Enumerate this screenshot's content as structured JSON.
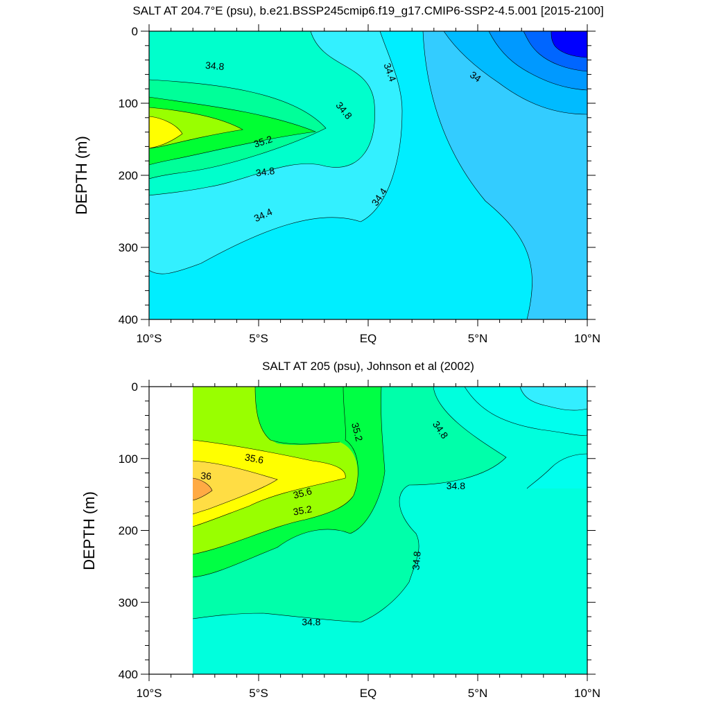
{
  "chart_data": [
    {
      "type": "contour",
      "title": "SALT AT 204.7°E (psu), b.e21.BSSP245cmip6.f19_g17.CMIP6-SSP2-4.5.001 [2015-2100]",
      "ylabel": "DEPTH (m)",
      "xlabel": "",
      "x_ticks": [
        {
          "value": -10,
          "label": "10°S"
        },
        {
          "value": -5,
          "label": "5°S"
        },
        {
          "value": 0,
          "label": "EQ"
        },
        {
          "value": 5,
          "label": "5°N"
        },
        {
          "value": 10,
          "label": "10°N"
        }
      ],
      "y_ticks": [
        {
          "value": 0,
          "label": "0"
        },
        {
          "value": 100,
          "label": "100"
        },
        {
          "value": 200,
          "label": "200"
        },
        {
          "value": 300,
          "label": "300"
        },
        {
          "value": 400,
          "label": "400"
        }
      ],
      "xlim": [
        -10,
        10
      ],
      "ylim": [
        0,
        400
      ],
      "y_reversed": true,
      "contour_labels": [
        {
          "text": "34.8",
          "lat": -7.0,
          "depth": 48,
          "angle": 5
        },
        {
          "text": "34.8",
          "lat": -1.1,
          "depth": 110,
          "angle": 50
        },
        {
          "text": "35.2",
          "lat": -4.8,
          "depth": 153,
          "angle": -18
        },
        {
          "text": "34.8",
          "lat": -4.7,
          "depth": 195,
          "angle": -8
        },
        {
          "text": "34.4",
          "lat": -4.8,
          "depth": 255,
          "angle": -25
        },
        {
          "text": "34.4",
          "lat": 1.0,
          "depth": 57,
          "angle": 70
        },
        {
          "text": "34.4",
          "lat": 0.5,
          "depth": 230,
          "angle": -55
        },
        {
          "text": "34",
          "lat": 4.9,
          "depth": 63,
          "angle": 35
        }
      ]
    },
    {
      "type": "contour",
      "title": "SALT AT 205 (psu), Johnson et al (2002)",
      "ylabel": "DEPTH (m)",
      "xlabel": "",
      "x_ticks": [
        {
          "value": -10,
          "label": "10°S"
        },
        {
          "value": -5,
          "label": "5°S"
        },
        {
          "value": 0,
          "label": "EQ"
        },
        {
          "value": 5,
          "label": "5°N"
        },
        {
          "value": 10,
          "label": "10°N"
        }
      ],
      "y_ticks": [
        {
          "value": 0,
          "label": "0"
        },
        {
          "value": 100,
          "label": "100"
        },
        {
          "value": 200,
          "label": "200"
        },
        {
          "value": 300,
          "label": "300"
        },
        {
          "value": 400,
          "label": "400"
        }
      ],
      "xlim": [
        -10,
        10
      ],
      "ylim": [
        0,
        400
      ],
      "y_reversed": true,
      "data_lat_range": [
        -8,
        10
      ],
      "contour_labels": [
        {
          "text": "35.2",
          "lat": -0.5,
          "depth": 63,
          "angle": 75
        },
        {
          "text": "34.8",
          "lat": 3.3,
          "depth": 60,
          "angle": 55
        },
        {
          "text": "35.6",
          "lat": -5.2,
          "depth": 100,
          "angle": 10
        },
        {
          "text": "36",
          "lat": -7.4,
          "depth": 124,
          "angle": 5
        },
        {
          "text": "35.6",
          "lat": -3.0,
          "depth": 148,
          "angle": -15
        },
        {
          "text": "35.2",
          "lat": -3.0,
          "depth": 172,
          "angle": -10
        },
        {
          "text": "34.8",
          "lat": 4.0,
          "depth": 138,
          "angle": 0
        },
        {
          "text": "34.8",
          "lat": 2.2,
          "depth": 242,
          "angle": -85
        },
        {
          "text": "34.8",
          "lat": -2.6,
          "depth": 327,
          "angle": 0
        }
      ]
    }
  ]
}
